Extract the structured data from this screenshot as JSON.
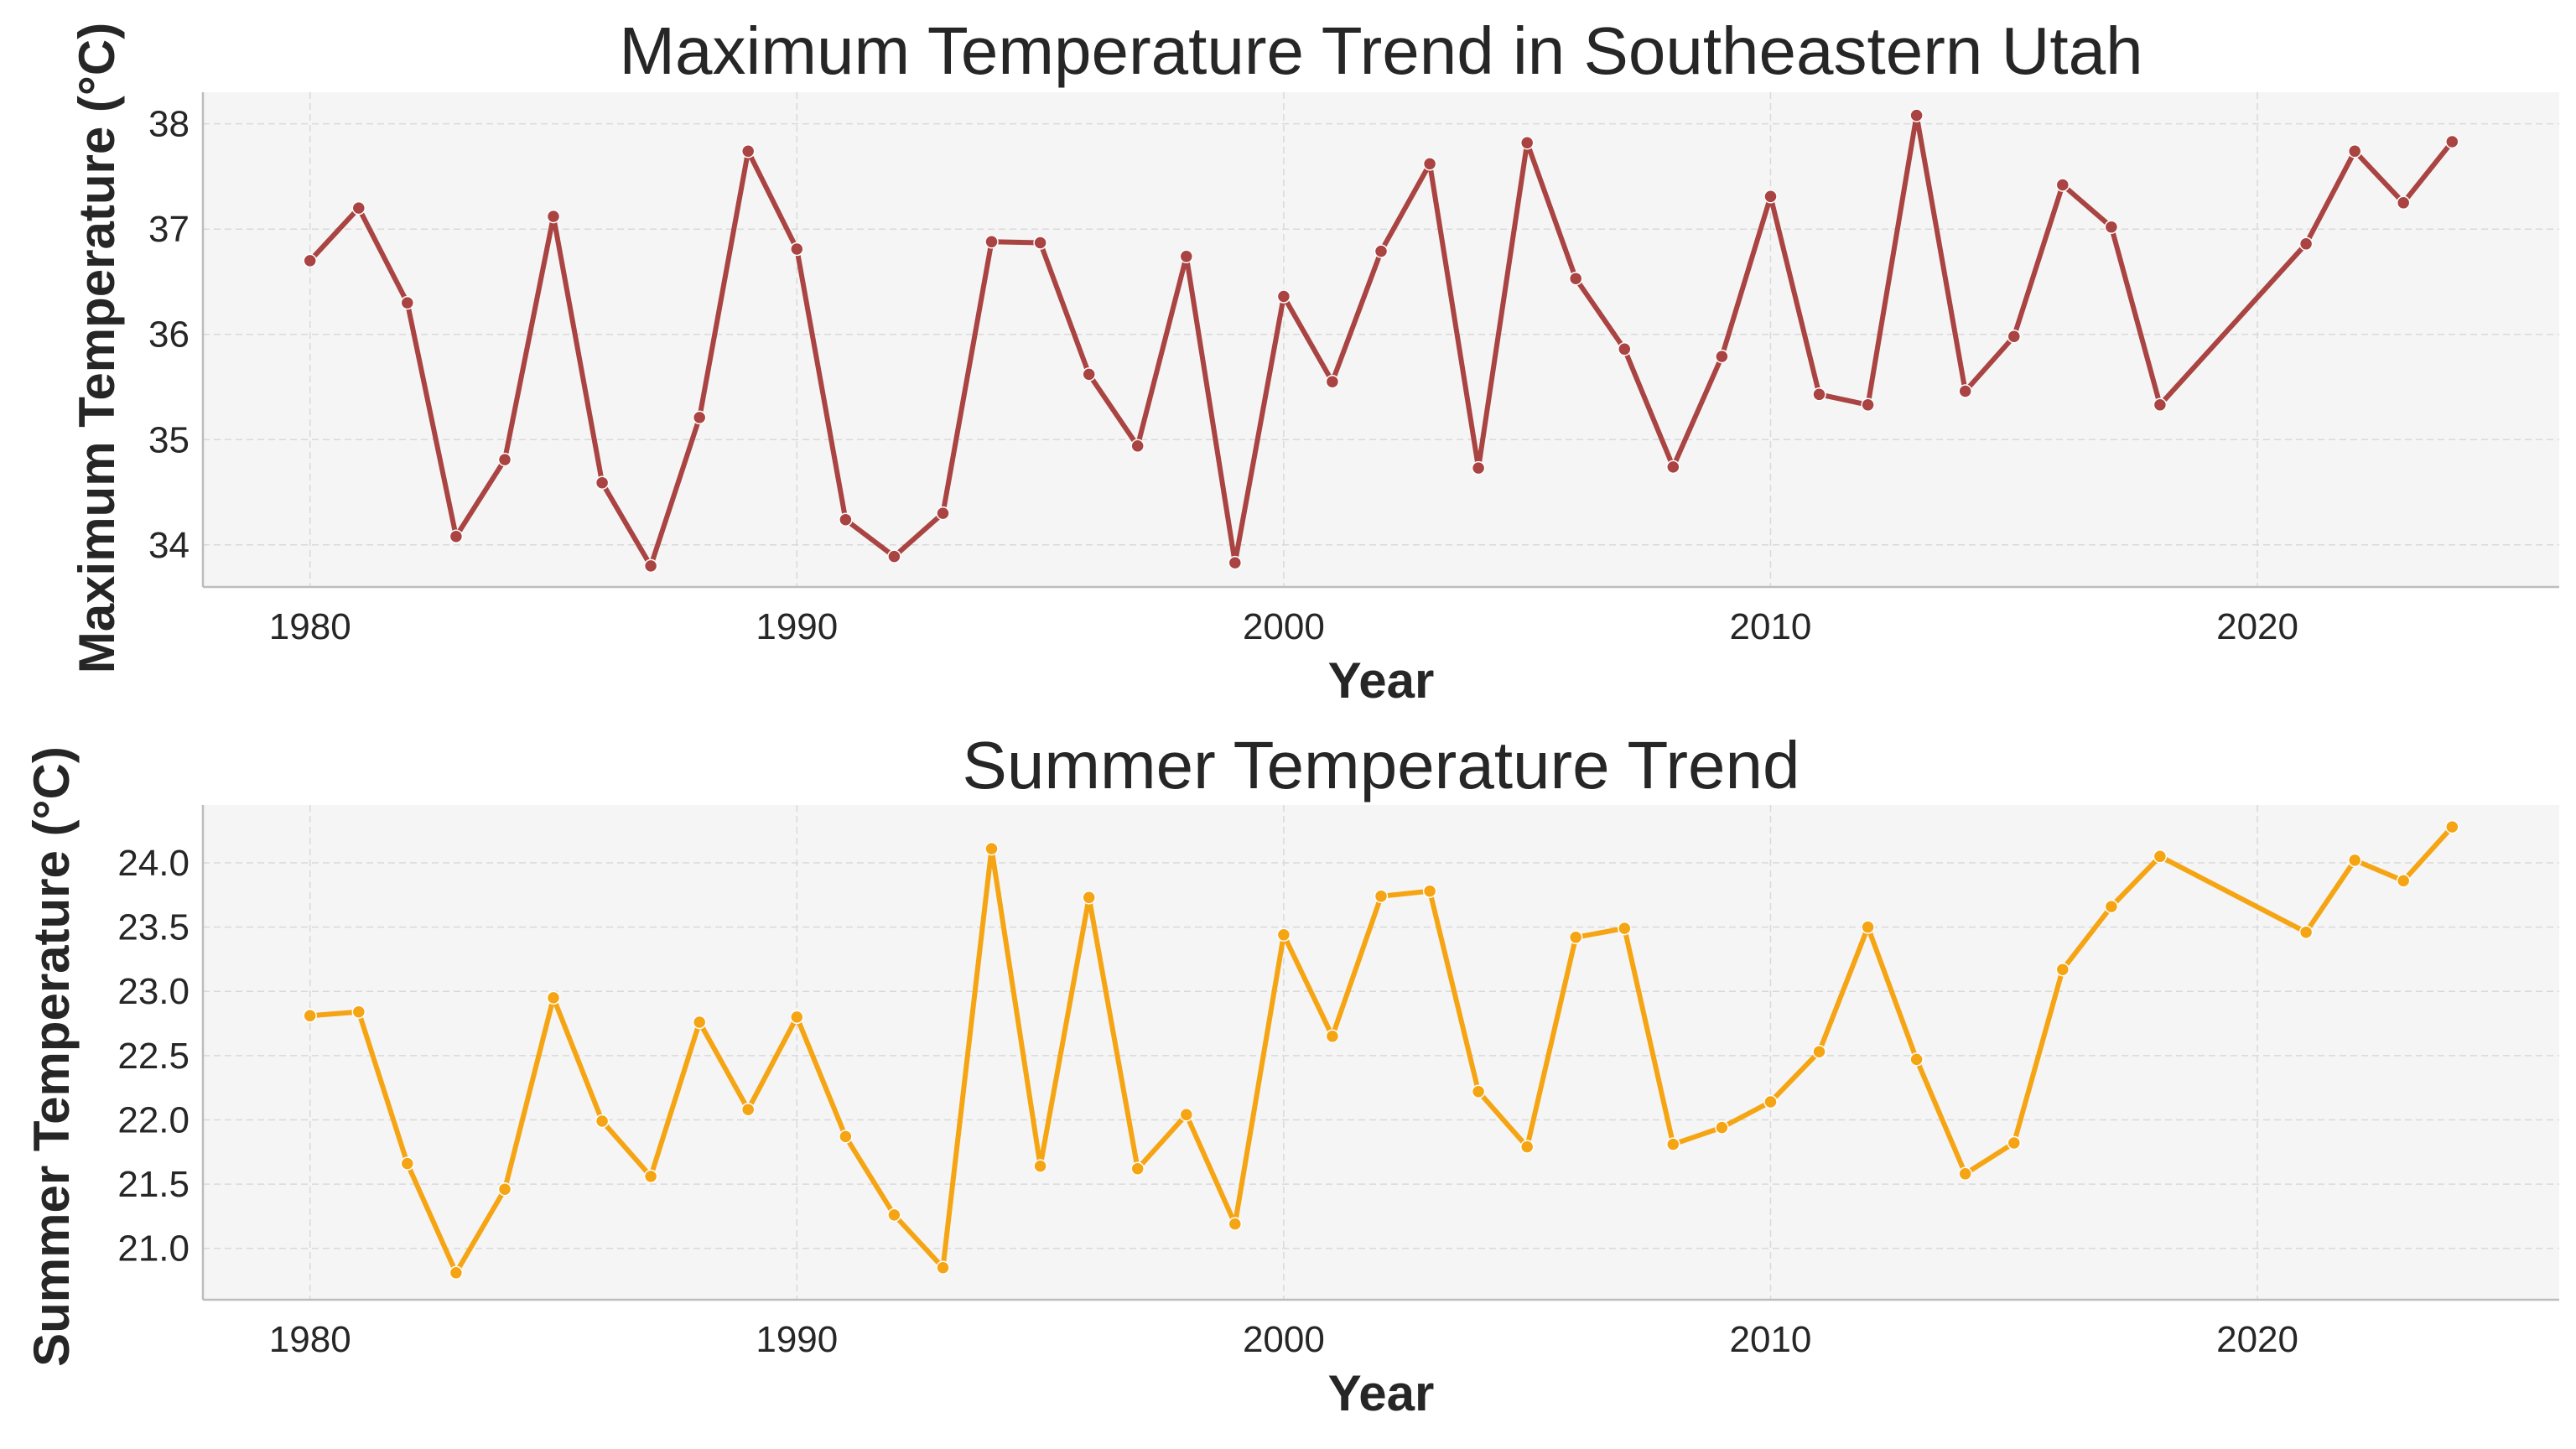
{
  "chart_data": [
    {
      "type": "line",
      "title": "Maximum Temperature Trend in Southeastern Utah",
      "xlabel": "Year",
      "ylabel": "Maximum Temperature (°C)",
      "xlim": [
        1977.8,
        2026.2
      ],
      "ylim": [
        33.6,
        38.3
      ],
      "xticks": [
        1980,
        1990,
        2000,
        2010,
        2020
      ],
      "yticks": [
        34,
        35,
        36,
        37,
        38
      ],
      "grid": true,
      "color": "#A94442",
      "series": [
        {
          "x": [
            1980,
            1981,
            1982,
            1983,
            1984,
            1985,
            1986,
            1987,
            1988,
            1989,
            1990,
            1991,
            1992,
            1993,
            1994,
            1995,
            1996,
            1997,
            1998,
            1999,
            2000,
            2001,
            2002,
            2003,
            2004,
            2005,
            2006,
            2007,
            2008,
            2009,
            2010,
            2011,
            2012,
            2013,
            2014,
            2015,
            2016,
            2017,
            2018,
            2021,
            2022,
            2023,
            2024
          ],
          "y": [
            36.7,
            37.2,
            36.3,
            34.08,
            34.81,
            37.12,
            34.59,
            33.8,
            35.21,
            37.74,
            36.81,
            34.24,
            33.89,
            34.3,
            36.88,
            36.87,
            35.62,
            34.94,
            36.74,
            33.83,
            36.36,
            35.55,
            36.79,
            37.62,
            34.73,
            37.82,
            36.53,
            35.86,
            34.74,
            35.79,
            37.31,
            35.43,
            35.33,
            38.08,
            35.46,
            35.98,
            37.42,
            37.02,
            35.33,
            36.86,
            37.74,
            37.25,
            37.83
          ]
        }
      ]
    },
    {
      "type": "line",
      "title": "Summer Temperature Trend",
      "xlabel": "Year",
      "ylabel": "Summer Temperature (°C)",
      "xlim": [
        1977.8,
        2026.2
      ],
      "ylim": [
        20.6,
        24.45
      ],
      "xticks": [
        1980,
        1990,
        2000,
        2010,
        2020
      ],
      "yticks": [
        "21.0",
        "21.5",
        "22.0",
        "22.5",
        "23.0",
        "23.5",
        "24.0"
      ],
      "grid": true,
      "color": "#F5A514",
      "series": [
        {
          "x": [
            1980,
            1981,
            1982,
            1983,
            1984,
            1985,
            1986,
            1987,
            1988,
            1989,
            1990,
            1991,
            1992,
            1993,
            1994,
            1995,
            1996,
            1997,
            1998,
            1999,
            2000,
            2001,
            2002,
            2003,
            2004,
            2005,
            2006,
            2007,
            2008,
            2009,
            2010,
            2011,
            2012,
            2013,
            2014,
            2015,
            2016,
            2017,
            2018,
            2021,
            2022,
            2023,
            2024
          ],
          "y": [
            22.81,
            22.84,
            21.66,
            20.81,
            21.46,
            22.95,
            21.99,
            21.56,
            22.76,
            22.08,
            22.8,
            21.87,
            21.26,
            20.85,
            24.11,
            21.64,
            23.73,
            21.62,
            22.04,
            21.19,
            23.44,
            22.65,
            23.74,
            23.78,
            22.22,
            21.79,
            23.42,
            23.49,
            21.81,
            21.94,
            22.14,
            22.53,
            23.5,
            22.47,
            21.58,
            21.82,
            23.17,
            23.66,
            24.05,
            23.46,
            24.02,
            23.86,
            24.28
          ]
        }
      ]
    }
  ]
}
